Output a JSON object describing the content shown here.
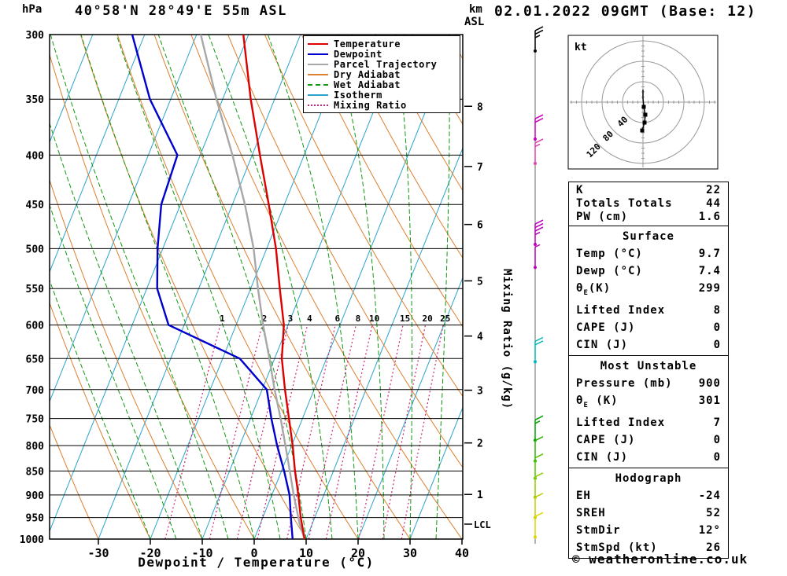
{
  "header": {
    "pressure_unit": "hPa",
    "title": "40°58'N 28°49'E 55m ASL",
    "km_label": "km",
    "asl_label": "ASL",
    "datetime": "02.01.2022 09GMT (Base: 12)"
  },
  "axes": {
    "pressure_ticks": [
      300,
      350,
      400,
      450,
      500,
      550,
      600,
      650,
      700,
      750,
      800,
      850,
      900,
      950,
      1000
    ],
    "temp_ticks": [
      -30,
      -20,
      -10,
      0,
      10,
      20,
      30,
      40
    ],
    "xlabel": "Dewpoint / Temperature (°C)",
    "right_axis_label": "Mixing Ratio (g/kg)",
    "km_levels": [
      {
        "km": 1,
        "p": 899
      },
      {
        "km": 2,
        "p": 795
      },
      {
        "km": 3,
        "p": 701
      },
      {
        "km": 4,
        "p": 616
      },
      {
        "km": 5,
        "p": 540
      },
      {
        "km": 6,
        "p": 472
      },
      {
        "km": 7,
        "p": 411
      },
      {
        "km": 8,
        "p": 356
      }
    ],
    "lcl": {
      "label": "LCL",
      "p": 965
    },
    "pressure_range": [
      300,
      1000
    ]
  },
  "legend": [
    {
      "label": "Temperature",
      "color": "#dd0000",
      "style": "solid"
    },
    {
      "label": "Dewpoint",
      "color": "#0000cc",
      "style": "solid"
    },
    {
      "label": "Parcel Trajectory",
      "color": "#a8a8a8",
      "style": "solid"
    },
    {
      "label": "Dry Adiabat",
      "color": "#dd8030",
      "style": "solid"
    },
    {
      "label": "Wet Adiabat",
      "color": "#119911",
      "style": "dashed"
    },
    {
      "label": "Isotherm",
      "color": "#2aa4cc",
      "style": "solid"
    },
    {
      "label": "Mixing Ratio",
      "color": "#cc2277",
      "style": "dotted"
    }
  ],
  "style": {
    "temperature": "#dd0000",
    "dewpoint": "#0000cc",
    "parcel": "#a8a8a8",
    "dry_adiabat": "#dd8030",
    "wet_adiabat": "#119911",
    "isotherm": "#2aa4cc",
    "mixing_ratio": "#cc2277"
  },
  "chart_data": {
    "type": "skewt_log_p_sounding",
    "station": "40°58'N 28°49'E 55m ASL",
    "valid": "02.01.2022 09GMT (Base: 12)",
    "pressure_unit": "hPa",
    "temperature_unit": "°C",
    "mixing_ratio_lines": [
      1,
      2,
      3,
      4,
      6,
      8,
      10,
      15,
      20,
      25
    ],
    "temperature_profile": [
      [
        1000,
        9.7
      ],
      [
        950,
        7.3
      ],
      [
        900,
        5.1
      ],
      [
        850,
        2.6
      ],
      [
        800,
        0.2
      ],
      [
        750,
        -2.6
      ],
      [
        700,
        -5.6
      ],
      [
        650,
        -8.6
      ],
      [
        600,
        -10.8
      ],
      [
        550,
        -14.4
      ],
      [
        500,
        -18.2
      ],
      [
        450,
        -23.0
      ],
      [
        400,
        -28.5
      ],
      [
        350,
        -34.6
      ],
      [
        300,
        -41.0
      ]
    ],
    "dewpoint_profile": [
      [
        1000,
        7.4
      ],
      [
        950,
        5.4
      ],
      [
        900,
        3.4
      ],
      [
        850,
        0.5
      ],
      [
        800,
        -2.8
      ],
      [
        750,
        -6.0
      ],
      [
        700,
        -9.1
      ],
      [
        650,
        -16.7
      ],
      [
        600,
        -33.0
      ],
      [
        550,
        -38.0
      ],
      [
        500,
        -41.0
      ],
      [
        450,
        -43.7
      ],
      [
        400,
        -44.4
      ],
      [
        350,
        -54.0
      ],
      [
        300,
        -62.4
      ]
    ],
    "parcel_profile": [
      [
        1000,
        9.7
      ],
      [
        965,
        7.6
      ],
      [
        900,
        4.2
      ],
      [
        850,
        1.6
      ],
      [
        800,
        -1.2
      ],
      [
        750,
        -4.2
      ],
      [
        700,
        -7.6
      ],
      [
        650,
        -11.0
      ],
      [
        600,
        -14.8
      ],
      [
        550,
        -18.6
      ],
      [
        500,
        -22.5
      ],
      [
        450,
        -27.6
      ],
      [
        400,
        -33.8
      ],
      [
        350,
        -41.2
      ],
      [
        300,
        -49.2
      ]
    ]
  },
  "wind_barbs": [
    {
      "p": 312,
      "color": "#000000",
      "speed": 25
    },
    {
      "p": 385,
      "color": "#cc00bb",
      "speed": 20
    },
    {
      "p": 408,
      "color": "#dd44aa",
      "speed": 15
    },
    {
      "p": 495,
      "color": "#bb00bb",
      "speed": 35
    },
    {
      "p": 523,
      "color": "#bb00bb",
      "speed": 5
    },
    {
      "p": 655,
      "color": "#00b8b8",
      "speed": 20
    },
    {
      "p": 790,
      "color": "#00a400",
      "speed": 15
    },
    {
      "p": 830,
      "color": "#2ab400",
      "speed": 10
    },
    {
      "p": 865,
      "color": "#58c400",
      "speed": 10
    },
    {
      "p": 905,
      "color": "#8fcc00",
      "speed": 10
    },
    {
      "p": 950,
      "color": "#c8cc00",
      "speed": 10
    },
    {
      "p": 995,
      "color": "#e0d800",
      "speed": 10
    }
  ],
  "hodograph": {
    "unit": "kt",
    "rings": [
      40,
      80,
      120
    ],
    "trace": [
      [
        0,
        -16
      ],
      [
        0,
        -5
      ],
      [
        1,
        6
      ],
      [
        3,
        16
      ],
      [
        2,
        26
      ],
      [
        -1,
        36
      ]
    ],
    "markers": [
      [
        1,
        6
      ],
      [
        3,
        16
      ],
      [
        2,
        26
      ],
      [
        -1,
        36
      ]
    ]
  },
  "sections": [
    {
      "rows": [
        [
          "K",
          "22"
        ],
        [
          "Totals Totals",
          "44"
        ],
        [
          "PW (cm)",
          "1.6"
        ]
      ]
    },
    {
      "title": "Surface",
      "rows": [
        [
          "Temp (°C)",
          "9.7"
        ],
        [
          "Dewp (°C)",
          "7.4"
        ],
        [
          {
            "base": "θ",
            "sub": "E",
            "rest": "(K)"
          },
          "299"
        ],
        [
          "Lifted Index",
          "8"
        ],
        [
          "CAPE (J)",
          "0"
        ],
        [
          "CIN (J)",
          "0"
        ]
      ]
    },
    {
      "title": "Most Unstable",
      "rows": [
        [
          "Pressure (mb)",
          "900"
        ],
        [
          {
            "base": "θ",
            "sub": "E",
            "rest": " (K)"
          },
          "301"
        ],
        [
          "Lifted Index",
          "7"
        ],
        [
          "CAPE (J)",
          "0"
        ],
        [
          "CIN (J)",
          "0"
        ]
      ]
    },
    {
      "title": "Hodograph",
      "rows": [
        [
          "EH",
          "-24"
        ],
        [
          "SREH",
          "52"
        ],
        [
          "StmDir",
          "12°"
        ],
        [
          "StmSpd (kt)",
          "26"
        ]
      ]
    }
  ],
  "footer": {
    "copyright": "© weatheronline.co.uk"
  }
}
